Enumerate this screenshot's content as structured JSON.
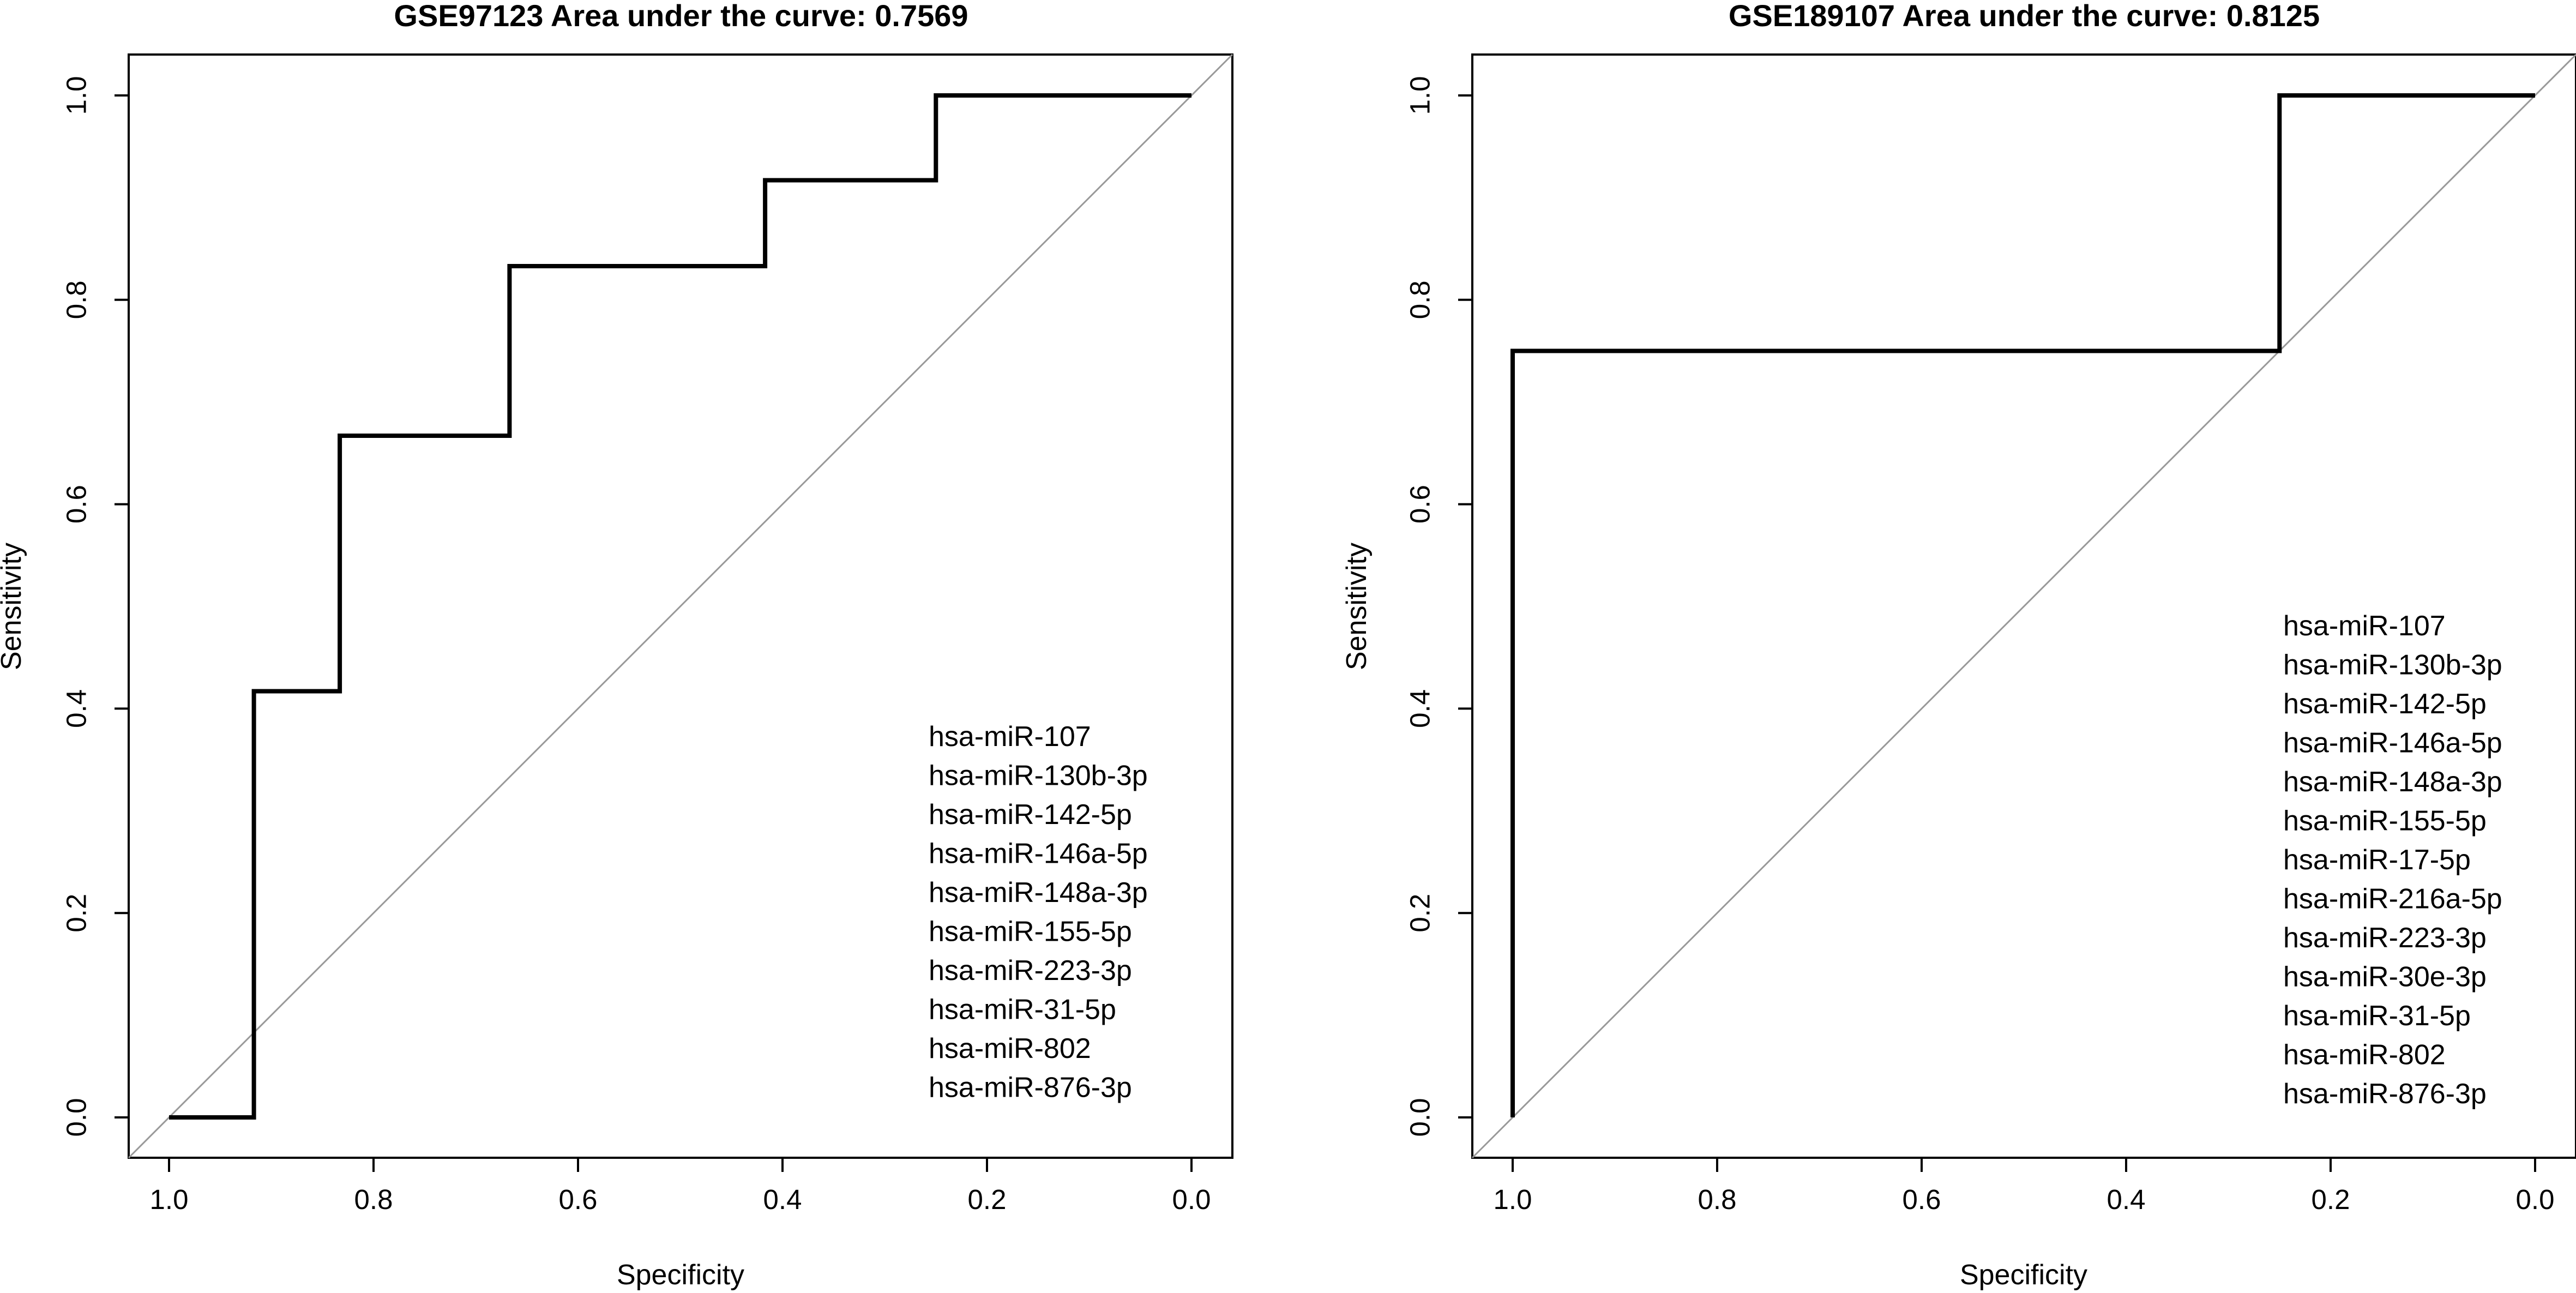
{
  "colors": {
    "curve": "#000000",
    "diagonal": "#999999",
    "axis": "#000000",
    "background": "#ffffff"
  },
  "chart_data": [
    {
      "type": "line",
      "title": "GSE97123  Area under the curve: 0.7569",
      "xlabel": "Specificity",
      "ylabel": "Sensitivity",
      "xlim": [
        1.0,
        0.0
      ],
      "ylim": [
        0.0,
        1.0
      ],
      "x_reversed": true,
      "xticks": [
        "1.0",
        "0.8",
        "0.6",
        "0.4",
        "0.2",
        "0.0"
      ],
      "yticks": [
        "0.0",
        "0.2",
        "0.4",
        "0.6",
        "0.8",
        "1.0"
      ],
      "diagonal_reference": true,
      "grid": false,
      "legend_position": "bottom-right",
      "legend_items": [
        "hsa-miR-107",
        "hsa-miR-130b-3p",
        "hsa-miR-142-5p",
        "hsa-miR-146a-5p",
        "hsa-miR-148a-3p",
        "hsa-miR-155-5p",
        "hsa-miR-223-3p",
        "hsa-miR-31-5p",
        "hsa-miR-802",
        "hsa-miR-876-3p"
      ],
      "series": [
        {
          "specificity": [
            1.0,
            0.917,
            0.917,
            0.833,
            0.833,
            0.667,
            0.667,
            0.417,
            0.417,
            0.25,
            0.25,
            0.0
          ],
          "sensitivity": [
            0.0,
            0.0,
            0.417,
            0.417,
            0.667,
            0.667,
            0.833,
            0.833,
            0.917,
            0.917,
            1.0,
            1.0
          ]
        }
      ]
    },
    {
      "type": "line",
      "title": "GSE189107   Area under the curve: 0.8125",
      "xlabel": "Specificity",
      "ylabel": "Sensitivity",
      "xlim": [
        1.0,
        0.0
      ],
      "ylim": [
        0.0,
        1.0
      ],
      "x_reversed": true,
      "xticks": [
        "1.0",
        "0.8",
        "0.6",
        "0.4",
        "0.2",
        "0.0"
      ],
      "yticks": [
        "0.0",
        "0.2",
        "0.4",
        "0.6",
        "0.8",
        "1.0"
      ],
      "diagonal_reference": true,
      "grid": false,
      "legend_position": "right",
      "legend_items": [
        "hsa-miR-107",
        "hsa-miR-130b-3p",
        "hsa-miR-142-5p",
        "hsa-miR-146a-5p",
        "hsa-miR-148a-3p",
        "hsa-miR-155-5p",
        "hsa-miR-17-5p",
        "hsa-miR-216a-5p",
        "hsa-miR-223-3p",
        "hsa-miR-30e-3p",
        "hsa-miR-31-5p",
        "hsa-miR-802",
        "hsa-miR-876-3p"
      ],
      "series": [
        {
          "specificity": [
            1.0,
            1.0,
            0.25,
            0.25,
            0.0
          ],
          "sensitivity": [
            0.0,
            0.75,
            0.75,
            1.0,
            1.0
          ]
        }
      ]
    }
  ]
}
